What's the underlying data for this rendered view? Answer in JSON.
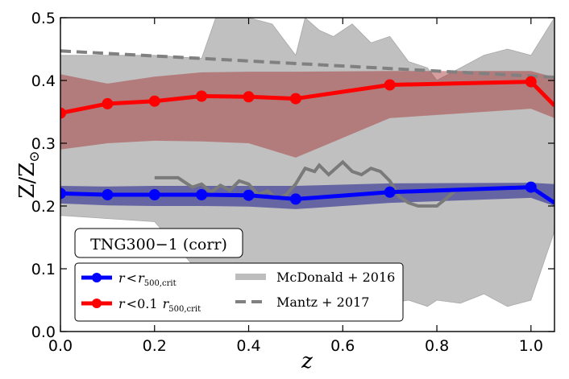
{
  "chart_data": {
    "type": "line",
    "title": "",
    "xlabel": "z",
    "ylabel": {
      "main": "Z/Z",
      "sub": "⊙"
    },
    "xlim": [
      0.0,
      1.05
    ],
    "ylim": [
      0.0,
      0.5
    ],
    "xticks": [
      "0.0",
      "0.2",
      "0.4",
      "0.6",
      "0.8",
      "1.0"
    ],
    "yticks": [
      "0.0",
      "0.1",
      "0.2",
      "0.3",
      "0.4",
      "0.5"
    ],
    "annotation": "TNG300−1 (corr)",
    "legend_position": "lower-left",
    "colors": {
      "red": "#ff0000",
      "red_band": "#a52a2a",
      "blue": "#0000ff",
      "blue_band": "#1a1a8c",
      "mcdonald_band": "#bdbdbd",
      "mantz": "#808080"
    },
    "series": [
      {
        "name": "r < 0.1 r500,crit",
        "legend": {
          "r": "r",
          "lt": "<0.1 ",
          "r2": "r",
          "sub": "500,crit"
        },
        "color": "#ff0000",
        "x": [
          0.0,
          0.1,
          0.2,
          0.3,
          0.4,
          0.5,
          0.7,
          1.0,
          1.05
        ],
        "y": [
          0.348,
          0.363,
          0.367,
          0.375,
          0.374,
          0.371,
          0.393,
          0.398,
          0.36
        ],
        "markers_count": 8,
        "band_upper": [
          0.41,
          0.395,
          0.406,
          0.413,
          0.414,
          0.414,
          0.415,
          0.415,
          0.405
        ],
        "band_lower": [
          0.29,
          0.3,
          0.304,
          0.303,
          0.3,
          0.277,
          0.34,
          0.355,
          0.34
        ]
      },
      {
        "name": "r < r500,crit",
        "legend": {
          "r": "r",
          "lt": "<",
          "r2": "r",
          "sub": "500,crit"
        },
        "color": "#0000ff",
        "x": [
          0.0,
          0.1,
          0.2,
          0.3,
          0.4,
          0.5,
          0.7,
          1.0,
          1.05
        ],
        "y": [
          0.22,
          0.218,
          0.218,
          0.218,
          0.217,
          0.211,
          0.222,
          0.23,
          0.205
        ],
        "markers_count": 8,
        "band_upper": [
          0.232,
          0.231,
          0.232,
          0.232,
          0.232,
          0.232,
          0.236,
          0.237,
          0.235
        ],
        "band_lower": [
          0.204,
          0.201,
          0.2,
          0.2,
          0.199,
          0.195,
          0.205,
          0.213,
          0.2
        ]
      }
    ],
    "mcdonald_2016": {
      "name": "McDonald+ 2016",
      "label": "McDonald + 2016",
      "x": [
        0.0,
        0.1,
        0.2,
        0.3,
        0.33,
        0.38,
        0.4,
        0.45,
        0.5,
        0.52,
        0.55,
        0.58,
        0.62,
        0.66,
        0.7,
        0.74,
        0.78,
        0.8,
        0.85,
        0.9,
        0.95,
        1.0,
        1.05
      ],
      "upper": [
        0.44,
        0.44,
        0.44,
        0.435,
        0.5,
        0.5,
        0.5,
        0.49,
        0.44,
        0.5,
        0.48,
        0.47,
        0.49,
        0.46,
        0.47,
        0.43,
        0.42,
        0.4,
        0.42,
        0.44,
        0.45,
        0.44,
        0.5
      ],
      "lower": [
        0.185,
        0.18,
        0.175,
        0.09,
        0.08,
        0.09,
        0.08,
        0.06,
        0.07,
        0.05,
        0.06,
        0.04,
        0.05,
        0.06,
        0.045,
        0.05,
        0.04,
        0.05,
        0.045,
        0.06,
        0.04,
        0.05,
        0.16
      ]
    },
    "mcdonald_2016_line": {
      "x": [
        0.2,
        0.25,
        0.26,
        0.28,
        0.3,
        0.32,
        0.34,
        0.36,
        0.38,
        0.4,
        0.42,
        0.44,
        0.46,
        0.48,
        0.5,
        0.52,
        0.54,
        0.55,
        0.57,
        0.6,
        0.62,
        0.64,
        0.66,
        0.68,
        0.7,
        0.72,
        0.74,
        0.76,
        0.78,
        0.8,
        0.82,
        0.84
      ],
      "y": [
        0.245,
        0.245,
        0.24,
        0.23,
        0.235,
        0.222,
        0.233,
        0.225,
        0.24,
        0.235,
        0.218,
        0.224,
        0.212,
        0.218,
        0.235,
        0.26,
        0.255,
        0.265,
        0.25,
        0.27,
        0.255,
        0.25,
        0.26,
        0.255,
        0.24,
        0.215,
        0.205,
        0.2,
        0.2,
        0.2,
        0.212,
        0.225
      ]
    },
    "mantz_2017": {
      "name": "Mantz+ 2017",
      "label": "Mantz + 2017",
      "x": [
        0.0,
        1.05
      ],
      "y": [
        0.447,
        0.405
      ]
    }
  }
}
